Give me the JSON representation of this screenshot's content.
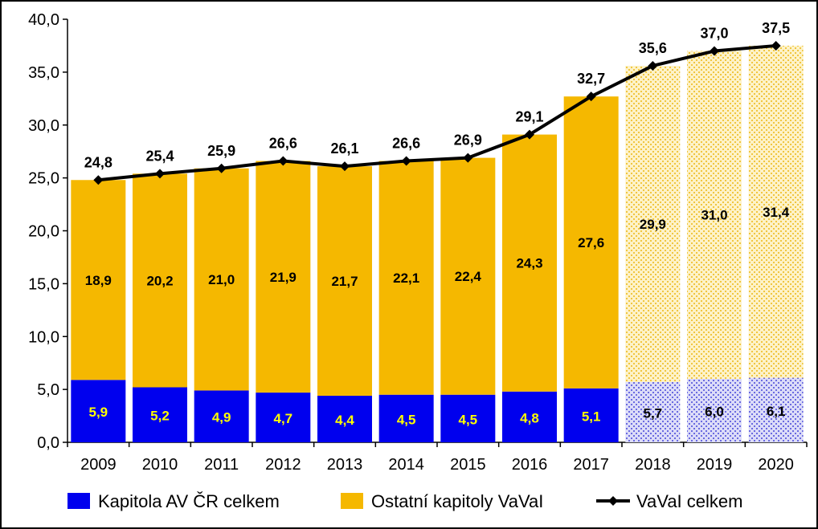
{
  "chart_data": {
    "type": "bar",
    "stacked": true,
    "categories": [
      "2009",
      "2010",
      "2011",
      "2012",
      "2013",
      "2014",
      "2015",
      "2016",
      "2017",
      "2018",
      "2019",
      "2020"
    ],
    "ylim": [
      0,
      40
    ],
    "y_ticks": [
      "0,0",
      "5,0",
      "10,0",
      "15,0",
      "20,0",
      "25,0",
      "30,0",
      "35,0",
      "40,0"
    ],
    "grid": false,
    "legend_position": "bottom",
    "series": [
      {
        "name": "Kapitola AV ČR celkem",
        "type": "bar",
        "color": "#0000ee",
        "values": [
          5.9,
          5.2,
          4.9,
          4.7,
          4.4,
          4.5,
          4.5,
          4.8,
          5.1,
          5.7,
          6.0,
          6.1
        ],
        "labels": [
          "5,9",
          "5,2",
          "4,9",
          "4,7",
          "4,4",
          "4,5",
          "4,5",
          "4,8",
          "5,1",
          "5,7",
          "6,0",
          "6,1"
        ]
      },
      {
        "name": "Ostatní kapitoly VaVaI",
        "type": "bar",
        "color": "#f5b800",
        "values": [
          18.9,
          20.2,
          21.0,
          21.9,
          21.7,
          22.1,
          22.4,
          24.3,
          27.6,
          29.9,
          31.0,
          31.4
        ],
        "labels": [
          "18,9",
          "20,2",
          "21,0",
          "21,9",
          "21,7",
          "22,1",
          "22,4",
          "24,3",
          "27,6",
          "29,9",
          "31,0",
          "31,4"
        ]
      },
      {
        "name": "VaVaI celkem",
        "type": "line",
        "color": "#000000",
        "values": [
          24.8,
          25.4,
          25.9,
          26.6,
          26.1,
          26.6,
          26.9,
          29.1,
          32.7,
          35.6,
          37.0,
          37.5
        ],
        "labels": [
          "24,8",
          "25,4",
          "25,9",
          "26,6",
          "26,1",
          "26,6",
          "26,9",
          "29,1",
          "32,7",
          "35,6",
          "37,0",
          "37,5"
        ]
      }
    ],
    "projected_categories": [
      "2018",
      "2019",
      "2020"
    ]
  }
}
